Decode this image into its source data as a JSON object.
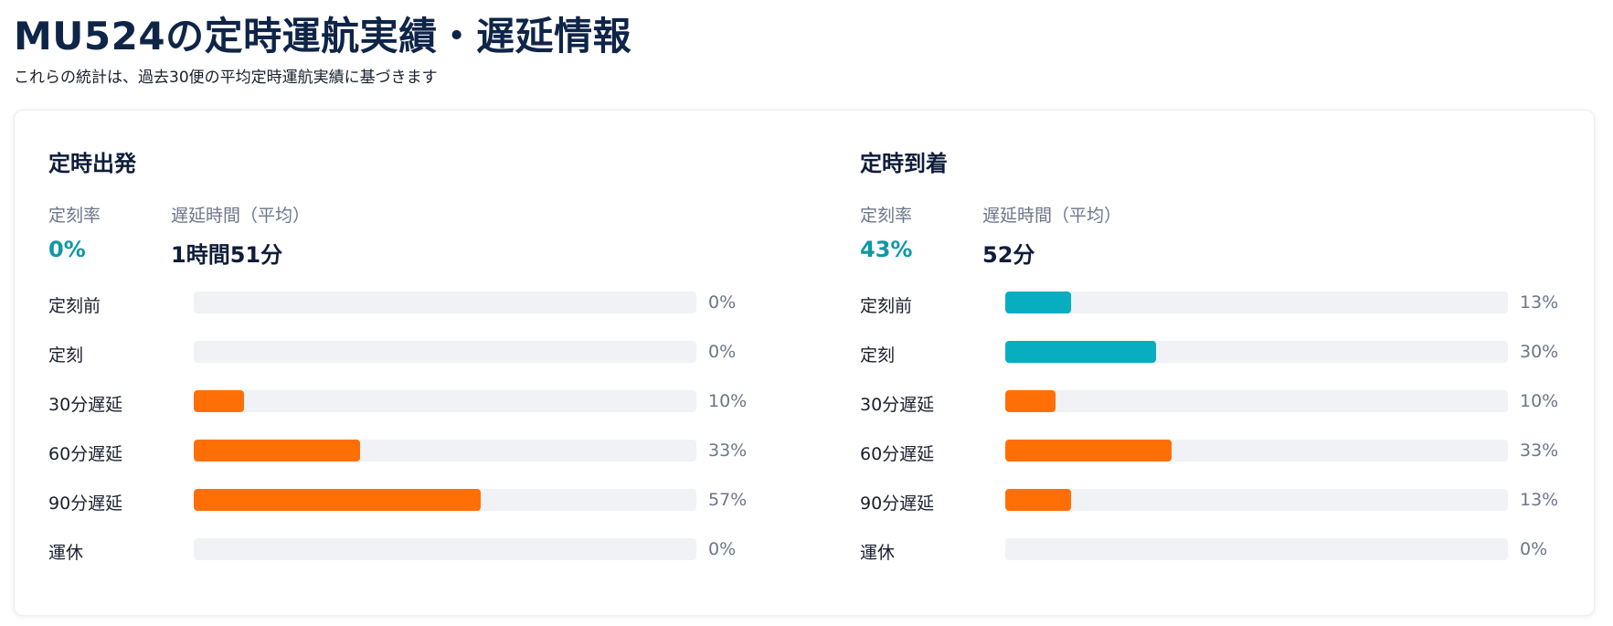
{
  "page": {
    "title": "MU524の定時運航実績・遅延情報",
    "subtitle": "これらの統計は、過去30便の平均定時運航実績に基づきます"
  },
  "colors": {
    "ontime": "#06aebf",
    "delay": "#ff6f05",
    "track": "#f1f2f6",
    "rate_text": "#0f97a7"
  },
  "departure": {
    "title": "定時出発",
    "rate_label": "定刻率",
    "rate_value": "0%",
    "delay_label": "遅延時間（平均）",
    "delay_value": "1時間51分",
    "rows": [
      {
        "label": "定刻前",
        "percent": 0,
        "percent_text": "0%",
        "kind": "ontime"
      },
      {
        "label": "定刻",
        "percent": 0,
        "percent_text": "0%",
        "kind": "ontime"
      },
      {
        "label": "30分遅延",
        "percent": 10,
        "percent_text": "10%",
        "kind": "delay"
      },
      {
        "label": "60分遅延",
        "percent": 33,
        "percent_text": "33%",
        "kind": "delay"
      },
      {
        "label": "90分遅延",
        "percent": 57,
        "percent_text": "57%",
        "kind": "delay"
      },
      {
        "label": "運休",
        "percent": 0,
        "percent_text": "0%",
        "kind": "delay"
      }
    ]
  },
  "arrival": {
    "title": "定時到着",
    "rate_label": "定刻率",
    "rate_value": "43%",
    "delay_label": "遅延時間（平均）",
    "delay_value": "52分",
    "rows": [
      {
        "label": "定刻前",
        "percent": 13,
        "percent_text": "13%",
        "kind": "ontime"
      },
      {
        "label": "定刻",
        "percent": 30,
        "percent_text": "30%",
        "kind": "ontime"
      },
      {
        "label": "30分遅延",
        "percent": 10,
        "percent_text": "10%",
        "kind": "delay"
      },
      {
        "label": "60分遅延",
        "percent": 33,
        "percent_text": "33%",
        "kind": "delay"
      },
      {
        "label": "90分遅延",
        "percent": 13,
        "percent_text": "13%",
        "kind": "delay"
      },
      {
        "label": "運休",
        "percent": 0,
        "percent_text": "0%",
        "kind": "delay"
      }
    ]
  }
}
